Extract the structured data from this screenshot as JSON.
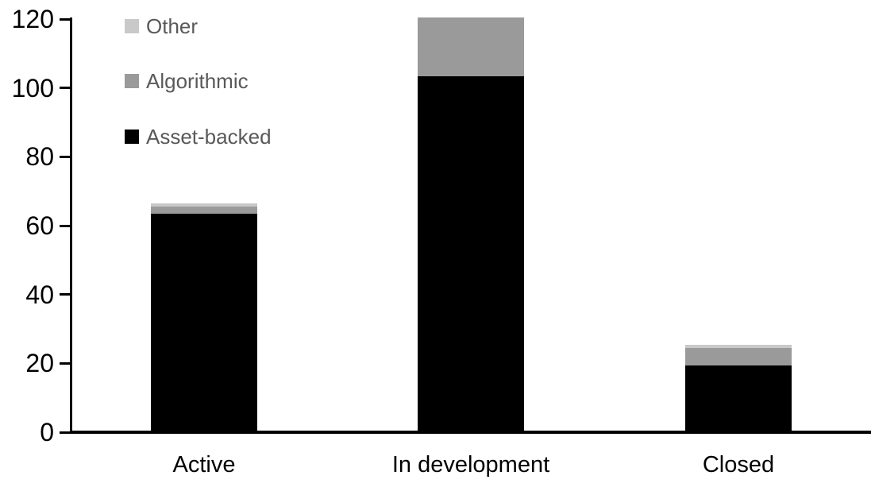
{
  "chart_data": {
    "type": "bar",
    "stacked": true,
    "title": "",
    "xlabel": "",
    "ylabel": "",
    "categories": [
      "Active",
      "In development",
      "Closed"
    ],
    "series": [
      {
        "name": "Asset-backed",
        "color": "#000000",
        "values": [
          63,
          103,
          19
        ]
      },
      {
        "name": "Algorithmic",
        "color": "#9a9a9a",
        "values": [
          2,
          17,
          5
        ]
      },
      {
        "name": "Other",
        "color": "#c9c9c9",
        "values": [
          1,
          0,
          1
        ]
      }
    ],
    "totals": [
      66,
      120,
      25
    ],
    "y_axis": {
      "min": 0,
      "max": 120,
      "tick_step": 20,
      "ticks": [
        0,
        20,
        40,
        60,
        80,
        100,
        120
      ]
    },
    "legend": {
      "position": "top-left",
      "order": [
        "Other",
        "Algorithmic",
        "Asset-backed"
      ],
      "text_color": "#595959"
    },
    "grid": "off",
    "axis_color": "#000000",
    "background": "#ffffff"
  }
}
